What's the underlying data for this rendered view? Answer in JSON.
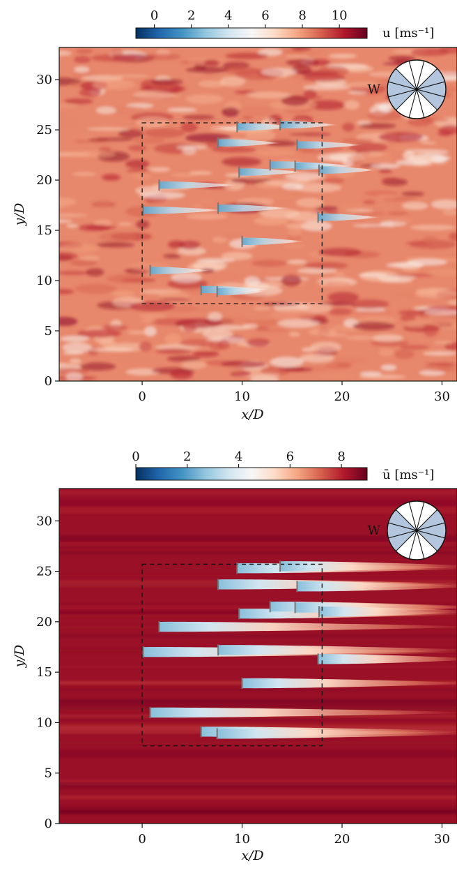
{
  "chart_data": [
    {
      "type": "heatmap",
      "title": "",
      "xlabel": "x/D",
      "ylabel": "y/D",
      "colorbar": {
        "label": "u [ms⁻¹]",
        "range": [
          -1,
          11.5
        ],
        "ticks": [
          "0",
          "2",
          "4",
          "6",
          "8",
          "10"
        ],
        "tick_values": [
          0,
          2,
          4,
          6,
          8,
          10
        ],
        "colormap": "RdBu_r"
      },
      "xlim": [
        -8.3,
        31.5
      ],
      "ylim": [
        0,
        33.2
      ],
      "xticks": [
        "0",
        "10",
        "20",
        "30"
      ],
      "xtick_values": [
        0,
        10,
        20,
        30
      ],
      "yticks": [
        "0",
        "5",
        "10",
        "15",
        "20",
        "25",
        "30"
      ],
      "ytick_values": [
        0,
        5,
        10,
        15,
        20,
        25,
        30
      ],
      "background_value": 8.3,
      "texture": "turbulent",
      "wind_direction": "W",
      "dashed_box": {
        "x": [
          0.0,
          18.0
        ],
        "y": [
          7.7,
          25.7
        ]
      },
      "turbines": [
        {
          "x": 9.5,
          "y": 25.3
        },
        {
          "x": 13.8,
          "y": 25.5
        },
        {
          "x": 7.6,
          "y": 23.7
        },
        {
          "x": 15.5,
          "y": 23.5
        },
        {
          "x": 9.7,
          "y": 20.8
        },
        {
          "x": 12.8,
          "y": 21.5
        },
        {
          "x": 15.3,
          "y": 21.4
        },
        {
          "x": 17.7,
          "y": 21.0
        },
        {
          "x": 1.7,
          "y": 19.5
        },
        {
          "x": 0.1,
          "y": 17.0
        },
        {
          "x": 7.6,
          "y": 17.2
        },
        {
          "x": 17.6,
          "y": 16.3
        },
        {
          "x": 10.0,
          "y": 13.9
        },
        {
          "x": 0.8,
          "y": 11.0
        },
        {
          "x": 5.9,
          "y": 9.1
        },
        {
          "x": 7.5,
          "y": 8.9
        }
      ],
      "wake_deficit": "strong near turbines, patchy downstream"
    },
    {
      "type": "heatmap",
      "title": "",
      "xlabel": "x/D",
      "ylabel": "y/D",
      "colorbar": {
        "label": "ū [ms⁻¹]",
        "range": [
          0,
          9
        ],
        "ticks": [
          "0",
          "2",
          "4",
          "6",
          "8"
        ],
        "tick_values": [
          0,
          2,
          4,
          6,
          8
        ],
        "colormap": "RdBu_r"
      },
      "xlim": [
        -8.3,
        31.5
      ],
      "ylim": [
        0,
        33.2
      ],
      "xticks": [
        "0",
        "10",
        "20",
        "30"
      ],
      "xtick_values": [
        0,
        10,
        20,
        30
      ],
      "yticks": [
        "0",
        "5",
        "10",
        "15",
        "20",
        "25",
        "30"
      ],
      "ytick_values": [
        0,
        5,
        10,
        15,
        20,
        25,
        30
      ],
      "background_value": 8.4,
      "texture": "smooth",
      "wind_direction": "W",
      "dashed_box": {
        "x": [
          0.0,
          18.0
        ],
        "y": [
          7.7,
          25.7
        ]
      },
      "turbines": [
        {
          "x": 9.5,
          "y": 25.3
        },
        {
          "x": 13.8,
          "y": 25.5
        },
        {
          "x": 7.6,
          "y": 23.7
        },
        {
          "x": 15.5,
          "y": 23.5
        },
        {
          "x": 9.7,
          "y": 20.8
        },
        {
          "x": 12.8,
          "y": 21.5
        },
        {
          "x": 15.3,
          "y": 21.4
        },
        {
          "x": 17.7,
          "y": 21.0
        },
        {
          "x": 1.7,
          "y": 19.5
        },
        {
          "x": 0.1,
          "y": 17.0
        },
        {
          "x": 7.6,
          "y": 17.2
        },
        {
          "x": 17.6,
          "y": 16.3
        },
        {
          "x": 10.0,
          "y": 13.9
        },
        {
          "x": 0.8,
          "y": 11.0
        },
        {
          "x": 5.9,
          "y": 9.1
        },
        {
          "x": 7.5,
          "y": 8.9
        }
      ],
      "wake_deficit": "smooth elongated wakes extending downstream"
    }
  ]
}
